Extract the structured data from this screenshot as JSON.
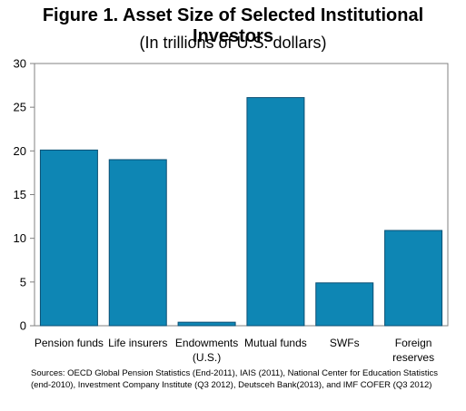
{
  "title": "Figure 1. Asset Size of Selected Institutional Investors",
  "subtitle": "(In trillions of U.S. dollars)",
  "source": "Sources: OECD Global Pension Statistics (End-2011), IAIS (2011), National Center for Education Statistics (end-2010), Investment Company Institute (Q3 2012), Deutsceh Bank(2013), and IMF COFER (Q3 2012)",
  "chart_data": {
    "type": "bar",
    "title": "Figure 1. Asset Size of Selected Institutional Investors",
    "subtitle": "(In trillions of U.S. dollars)",
    "categories": [
      [
        "Pension funds"
      ],
      [
        "Life insurers"
      ],
      [
        "Endowments",
        "(U.S.)"
      ],
      [
        "Mutual funds"
      ],
      [
        "SWFs"
      ],
      [
        "Foreign",
        "reserves"
      ]
    ],
    "values": [
      20.1,
      19.0,
      0.4,
      26.1,
      4.9,
      10.9
    ],
    "ylim": [
      0,
      30
    ],
    "yticks": [
      0,
      5,
      10,
      15,
      20,
      25,
      30
    ],
    "grid": false,
    "bar_color": "#0e86b4",
    "bar_edge_color": "#0b4f73"
  }
}
